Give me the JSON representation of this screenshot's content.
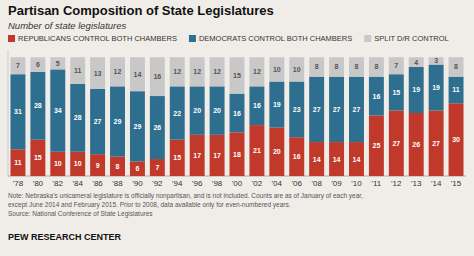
{
  "chart_data": {
    "type": "bar",
    "stacked": true,
    "title": "Partisan Composition of State Legislatures",
    "subtitle": "Number of state legislatures",
    "categories": [
      "'78",
      "'80",
      "'82",
      "'84",
      "'86",
      "'88",
      "'90",
      "'92",
      "'94",
      "'96",
      "'98",
      "'00",
      "'02",
      "'04",
      "'06",
      "'08",
      "'09",
      "'10",
      "'11",
      "'12",
      "'13",
      "'14",
      "'15"
    ],
    "series": [
      {
        "name": "REPUBLICANS CONTROL BOTH CHAMBERS",
        "color": "#c0392b",
        "values": [
          11,
          15,
          10,
          10,
          9,
          8,
          6,
          7,
          15,
          17,
          17,
          18,
          21,
          20,
          16,
          14,
          14,
          14,
          25,
          27,
          26,
          27,
          30
        ]
      },
      {
        "name": "DEMOCRATS CONTROL BOTH CHAMBERS",
        "color": "#2e6e8e",
        "values": [
          31,
          28,
          34,
          28,
          27,
          29,
          29,
          26,
          22,
          20,
          20,
          16,
          16,
          19,
          23,
          27,
          27,
          27,
          16,
          15,
          19,
          19,
          11
        ]
      },
      {
        "name": "SPLIT D/R CONTROL",
        "color": "#c8c8c8",
        "values": [
          7,
          6,
          5,
          11,
          13,
          12,
          14,
          16,
          12,
          12,
          12,
          15,
          12,
          10,
          10,
          8,
          8,
          8,
          8,
          7,
          4,
          3,
          8
        ]
      }
    ],
    "ylim": [
      0,
      52
    ],
    "tick_labels": "x",
    "grid": false,
    "legend": "top-left",
    "data_labels": true,
    "notes": [
      "Note: Nebraska’s unicameral legislature is officially nonpartisan, and is not included. Counts are as of January of each year,",
      "except June 2014 and February 2015. Prior to 2008, data available only for even-numbered years."
    ],
    "source": "Source: National Conference of State Legislatures",
    "footer": "PEW RESEARCH CENTER"
  }
}
